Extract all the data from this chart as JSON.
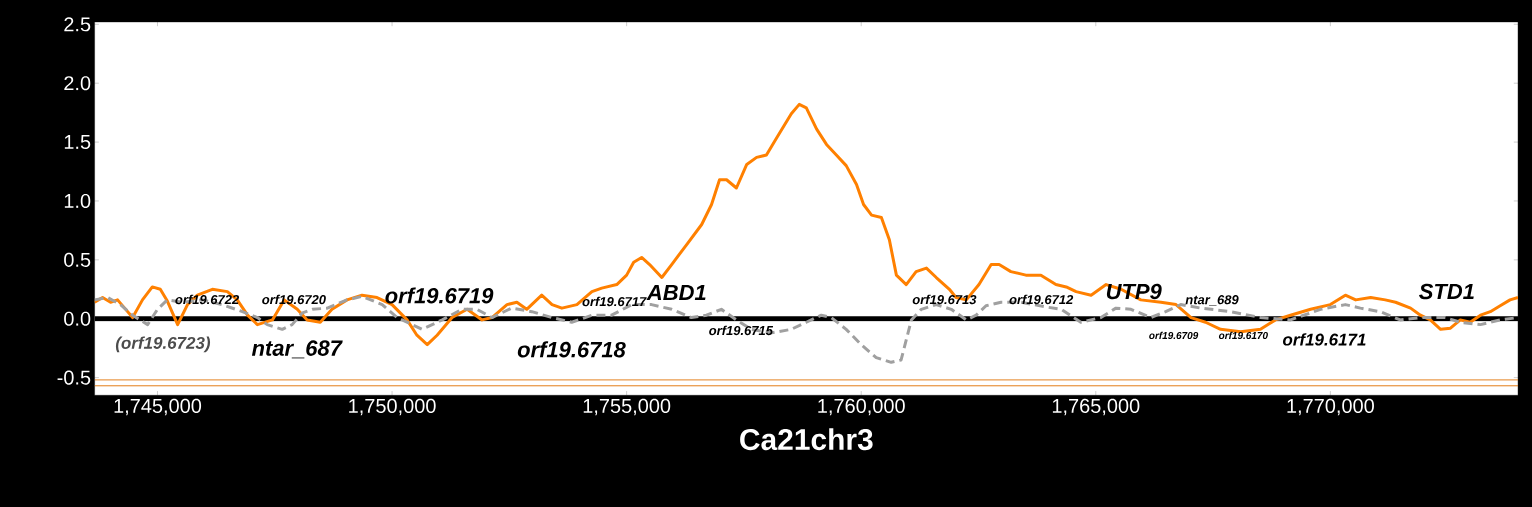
{
  "chart_data": {
    "type": "line",
    "xlabel": "Ca21chr3",
    "xlim": [
      1743660,
      1774000
    ],
    "ylim": [
      -0.65,
      2.52
    ],
    "xticks": [
      {
        "value": 1745000,
        "label": "1,745,000"
      },
      {
        "value": 1750000,
        "label": "1,750,000"
      },
      {
        "value": 1755000,
        "label": "1,755,000"
      },
      {
        "value": 1760000,
        "label": "1,760,000"
      },
      {
        "value": 1765000,
        "label": "1,765,000"
      },
      {
        "value": 1770000,
        "label": "1,770,000"
      }
    ],
    "yticks": [
      {
        "value": 2.5,
        "label": "2.5"
      },
      {
        "value": 2,
        "label": "2.0"
      },
      {
        "value": 1.5,
        "label": "1.5"
      },
      {
        "value": 1,
        "label": "1.0"
      },
      {
        "value": 0.5,
        "label": "0.5"
      },
      {
        "value": 0,
        "label": "0.0"
      },
      {
        "value": -0.5,
        "label": "-0.5"
      }
    ],
    "ref_lines": [
      {
        "axis": "y",
        "value": 0,
        "color": "#000000"
      },
      {
        "axis": "y",
        "value": -0.52,
        "color": "#e07000"
      },
      {
        "axis": "y",
        "value": -0.57,
        "color": "#e07000"
      }
    ],
    "series": [
      {
        "color": "#ff8000",
        "line_style": "solid",
        "x": [
          1743660,
          1743830,
          1744000,
          1744150,
          1744300,
          1744470,
          1744680,
          1744890,
          1745060,
          1745210,
          1745430,
          1745640,
          1745850,
          1746170,
          1746490,
          1746700,
          1746920,
          1747130,
          1747450,
          1747700,
          1747980,
          1748190,
          1748470,
          1748720,
          1749040,
          1749360,
          1749680,
          1750000,
          1750320,
          1750530,
          1750750,
          1750960,
          1751280,
          1751600,
          1751920,
          1752130,
          1752450,
          1752660,
          1752870,
          1753190,
          1753410,
          1753620,
          1753940,
          1754260,
          1754470,
          1754790,
          1755000,
          1755150,
          1755320,
          1755490,
          1755750,
          1755960,
          1756280,
          1756600,
          1756810,
          1756980,
          1757130,
          1757340,
          1757560,
          1757770,
          1757980,
          1758190,
          1758510,
          1758680,
          1758830,
          1759050,
          1759260,
          1759470,
          1759680,
          1759900,
          1760050,
          1760220,
          1760430,
          1760600,
          1760750,
          1760960,
          1761170,
          1761390,
          1761600,
          1761880,
          1762020,
          1762240,
          1762510,
          1762770,
          1762940,
          1763190,
          1763510,
          1763830,
          1764150,
          1764370,
          1764580,
          1764900,
          1765220,
          1765540,
          1765960,
          1766390,
          1766710,
          1767030,
          1767340,
          1767660,
          1768090,
          1768510,
          1768830,
          1769150,
          1769580,
          1770000,
          1770320,
          1770540,
          1770860,
          1771170,
          1771390,
          1771710,
          1771920,
          1772130,
          1772350,
          1772560,
          1772770,
          1772980,
          1773200,
          1773410,
          1773620,
          1773830,
          1774000
        ],
        "values": [
          0.14,
          0.18,
          0.14,
          0.16,
          0.09,
          0.01,
          0.16,
          0.27,
          0.25,
          0.15,
          -0.05,
          0.12,
          0.2,
          0.25,
          0.23,
          0.16,
          0.03,
          -0.05,
          -0.01,
          0.16,
          0.08,
          -0.01,
          -0.03,
          0.08,
          0.16,
          0.2,
          0.18,
          0.12,
          -0.01,
          -0.14,
          -0.22,
          -0.14,
          0.01,
          0.08,
          -0.01,
          0.01,
          0.12,
          0.14,
          0.08,
          0.2,
          0.12,
          0.09,
          0.12,
          0.23,
          0.26,
          0.29,
          0.37,
          0.48,
          0.52,
          0.46,
          0.35,
          0.46,
          0.63,
          0.8,
          0.97,
          1.18,
          1.18,
          1.11,
          1.31,
          1.37,
          1.39,
          1.53,
          1.74,
          1.82,
          1.79,
          1.61,
          1.48,
          1.39,
          1.3,
          1.14,
          0.97,
          0.88,
          0.86,
          0.67,
          0.37,
          0.29,
          0.4,
          0.43,
          0.35,
          0.25,
          0.18,
          0.16,
          0.29,
          0.46,
          0.46,
          0.4,
          0.37,
          0.37,
          0.29,
          0.27,
          0.23,
          0.2,
          0.29,
          0.25,
          0.16,
          0.14,
          0.12,
          0.01,
          -0.03,
          -0.09,
          -0.11,
          -0.09,
          -0.01,
          0.03,
          0.08,
          0.12,
          0.2,
          0.16,
          0.18,
          0.16,
          0.14,
          0.09,
          0.03,
          -0.01,
          -0.09,
          -0.08,
          -0.01,
          -0.03,
          0.03,
          0.06,
          0.11,
          0.16,
          0.18
        ]
      },
      {
        "color": "#a0a0a0",
        "line_style": "dashed",
        "x": [
          1743660,
          1743940,
          1744210,
          1744470,
          1744790,
          1745000,
          1745210,
          1745530,
          1745960,
          1746380,
          1746810,
          1747130,
          1747340,
          1747660,
          1747870,
          1748090,
          1748300,
          1748620,
          1749040,
          1749360,
          1749790,
          1750110,
          1750430,
          1750640,
          1751070,
          1751490,
          1751810,
          1752130,
          1752550,
          1752980,
          1753410,
          1753830,
          1754260,
          1754680,
          1755110,
          1755530,
          1755960,
          1756380,
          1756700,
          1757020,
          1757340,
          1757660,
          1758090,
          1758510,
          1758830,
          1759150,
          1759360,
          1759680,
          1760000,
          1760320,
          1760640,
          1760850,
          1760960,
          1761070,
          1761280,
          1761600,
          1761920,
          1762240,
          1762450,
          1762660,
          1762980,
          1763410,
          1763940,
          1764260,
          1764680,
          1765110,
          1765430,
          1765750,
          1766170,
          1766490,
          1766810,
          1767240,
          1767880,
          1768510,
          1769150,
          1769790,
          1770320,
          1770640,
          1771060,
          1771490,
          1771920,
          1772450,
          1772770,
          1773200,
          1773620,
          1774000
        ],
        "values": [
          0.16,
          0.18,
          0.12,
          0.03,
          -0.05,
          0.08,
          0.16,
          0.14,
          0.16,
          0.12,
          0.06,
          0.01,
          -0.05,
          -0.09,
          -0.05,
          0.05,
          0.08,
          0.09,
          0.16,
          0.19,
          0.12,
          0.01,
          -0.05,
          -0.09,
          -0.01,
          0.08,
          0.08,
          0.01,
          0.09,
          0.06,
          0.01,
          -0.03,
          0.03,
          0.03,
          0.12,
          0.12,
          0.08,
          0.01,
          0.03,
          0.08,
          -0.01,
          -0.09,
          -0.12,
          -0.09,
          -0.03,
          0.03,
          0.01,
          -0.09,
          -0.22,
          -0.33,
          -0.37,
          -0.35,
          -0.18,
          -0.01,
          0.08,
          0.12,
          0.08,
          -0.01,
          0.03,
          0.11,
          0.14,
          0.14,
          0.1,
          0.08,
          -0.03,
          0.01,
          0.09,
          0.08,
          0.01,
          0.06,
          0.12,
          0.09,
          0.06,
          0.01,
          -0.01,
          0.08,
          0.12,
          0.09,
          0.06,
          -0.01,
          0.01,
          0.01,
          -0.03,
          -0.05,
          -0.01,
          0.01
        ]
      }
    ],
    "annotations": [
      "(orf19.6723)",
      "orf19.6722",
      "orf19.6720",
      "orf19.6719",
      "ntar_687",
      "orf19.6718",
      "orf19.6717",
      "ABD1",
      "orf19.6715",
      "orf19.6713",
      "orf19.6712",
      "UTP9",
      "ntar_689",
      "orf19.6709",
      "orf19.6170",
      "orf19.6171",
      "STD1"
    ]
  }
}
